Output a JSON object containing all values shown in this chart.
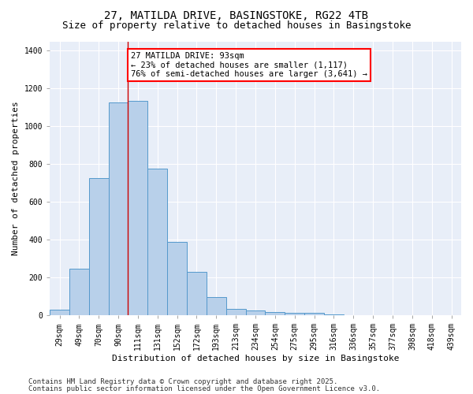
{
  "title_line1": "27, MATILDA DRIVE, BASINGSTOKE, RG22 4TB",
  "title_line2": "Size of property relative to detached houses in Basingstoke",
  "xlabel": "Distribution of detached houses by size in Basingstoke",
  "ylabel": "Number of detached properties",
  "categories": [
    "29sqm",
    "49sqm",
    "70sqm",
    "90sqm",
    "111sqm",
    "131sqm",
    "152sqm",
    "172sqm",
    "193sqm",
    "213sqm",
    "234sqm",
    "254sqm",
    "275sqm",
    "295sqm",
    "316sqm",
    "336sqm",
    "357sqm",
    "377sqm",
    "398sqm",
    "418sqm",
    "439sqm"
  ],
  "values": [
    30,
    245,
    728,
    1125,
    1135,
    775,
    390,
    228,
    95,
    32,
    25,
    18,
    14,
    14,
    3,
    0,
    0,
    0,
    0,
    0,
    0
  ],
  "bar_color": "#b8d0ea",
  "bar_edge_color": "#5599cc",
  "vline_x": 3.5,
  "annotation_box_text": "27 MATILDA DRIVE: 93sqm\n← 23% of detached houses are smaller (1,117)\n76% of semi-detached houses are larger (3,641) →",
  "box_edge_color": "red",
  "vline_color": "#cc0000",
  "bg_color": "#e8eef8",
  "ylim": [
    0,
    1450
  ],
  "yticks": [
    0,
    200,
    400,
    600,
    800,
    1000,
    1200,
    1400
  ],
  "footer_line1": "Contains HM Land Registry data © Crown copyright and database right 2025.",
  "footer_line2": "Contains public sector information licensed under the Open Government Licence v3.0.",
  "title_fontsize": 10,
  "subtitle_fontsize": 9,
  "axis_label_fontsize": 8,
  "tick_fontsize": 7,
  "annotation_fontsize": 7.5,
  "footer_fontsize": 6.5
}
